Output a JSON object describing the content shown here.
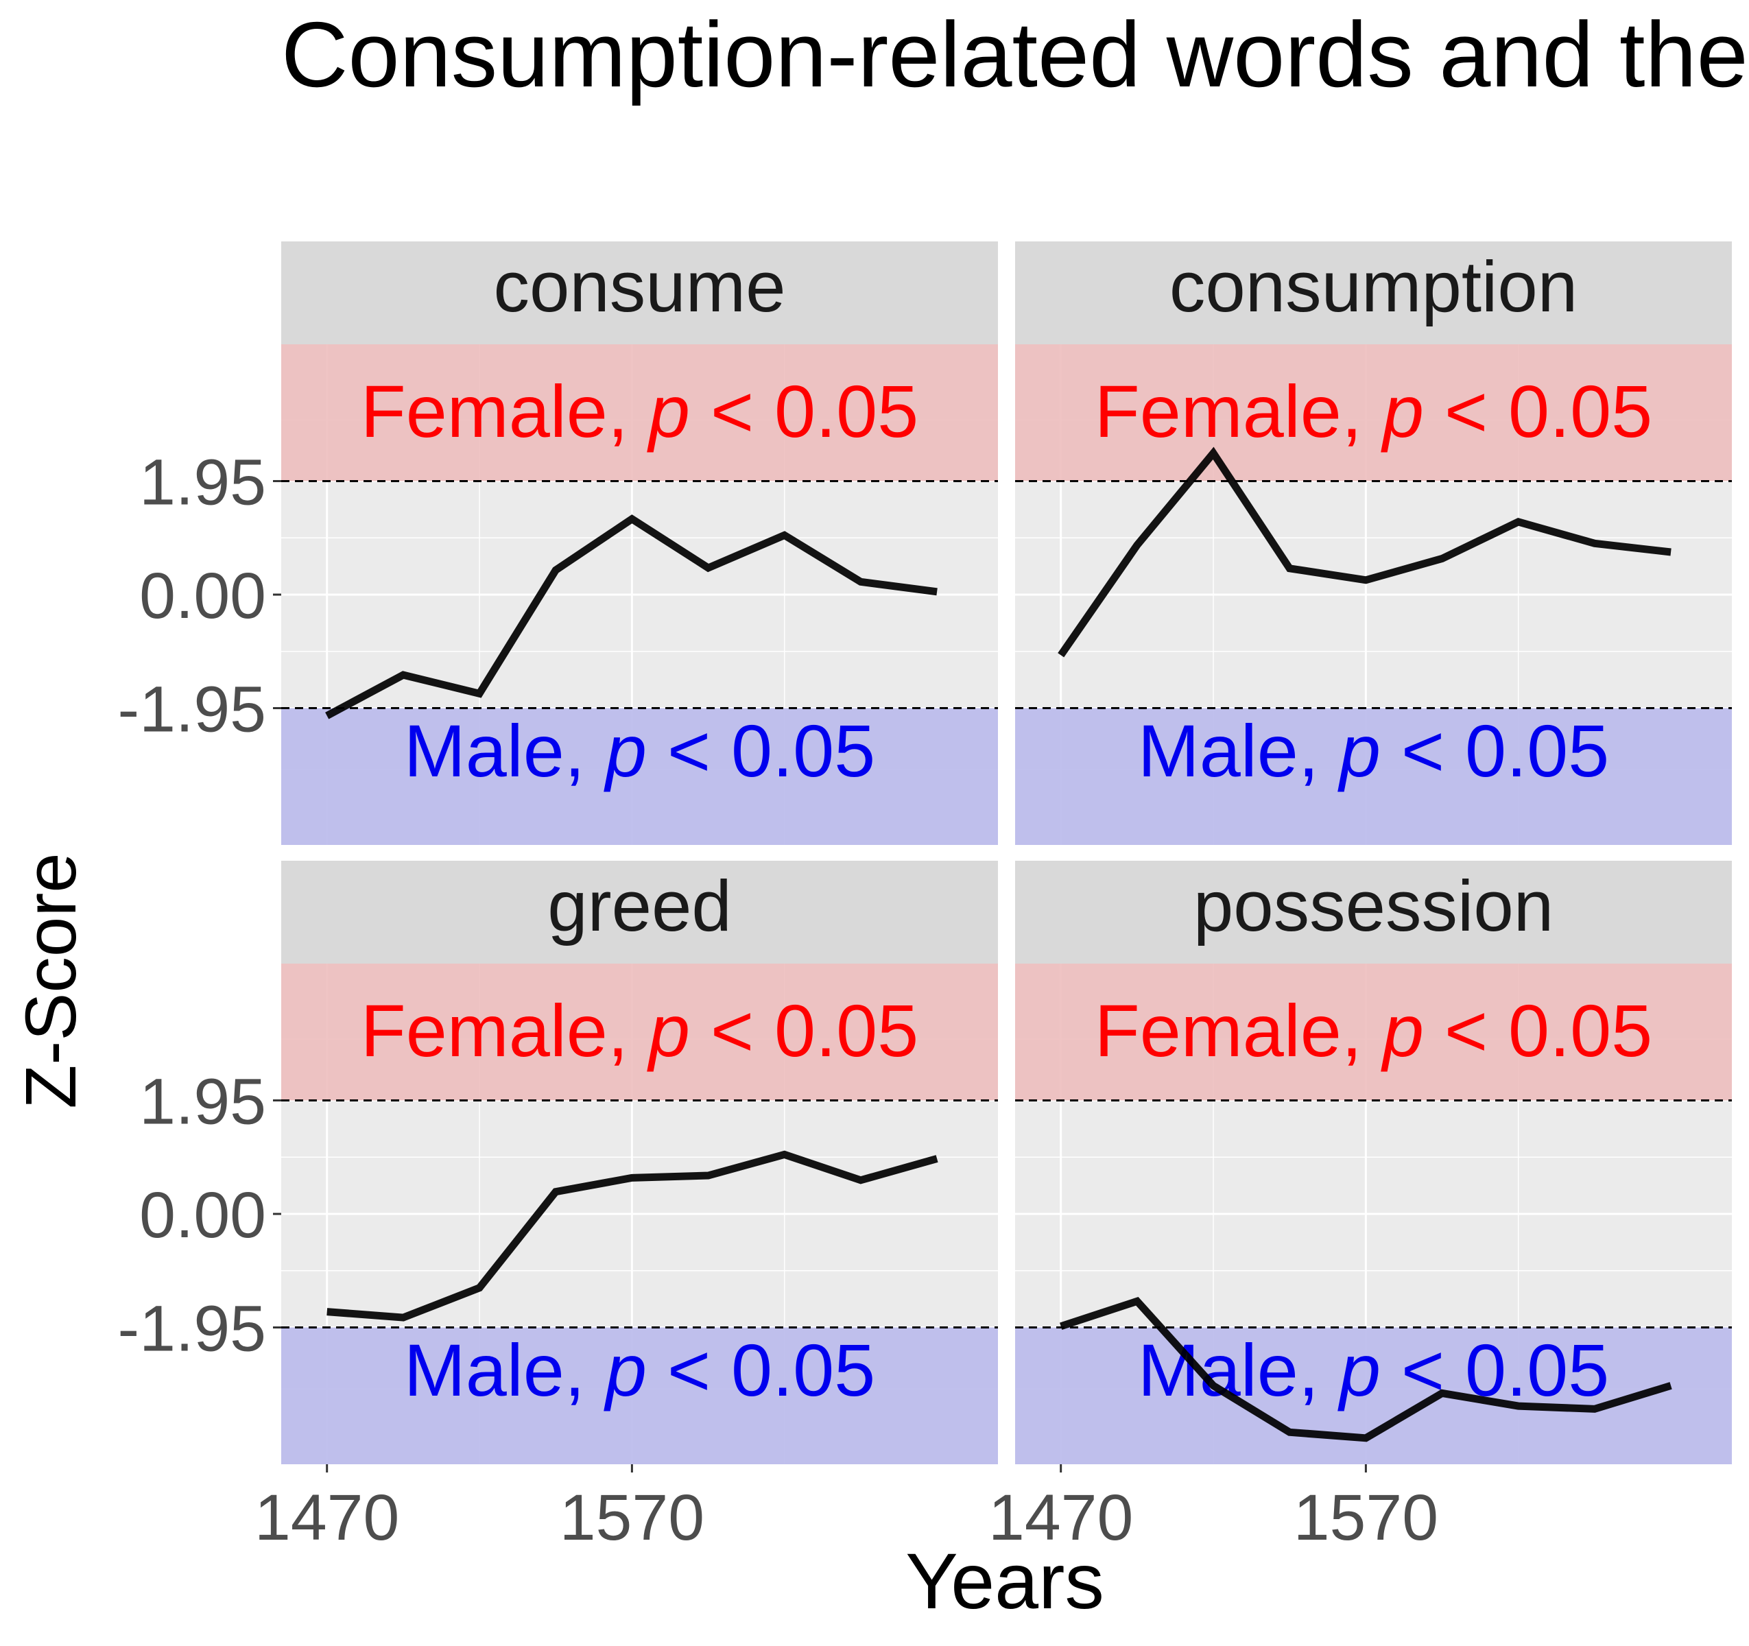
{
  "chart_data": {
    "type": "line",
    "title": "Consumption-related words and their gender contexts",
    "xlabel": "Years",
    "ylabel": "Z-Score",
    "x_ticks": [
      "1470",
      "1570"
    ],
    "y_ticks": [
      "-1.95",
      "0.00",
      "1.95"
    ],
    "xlim": [
      1455,
      1690
    ],
    "ylim": [
      -4.3,
      4.3
    ],
    "threshold": 1.95,
    "female_label": {
      "prefix": "Female, ",
      "p": "p",
      "suffix": " < 0.05"
    },
    "male_label": {
      "prefix": "Male, ",
      "p": "p",
      "suffix": " < 0.05"
    },
    "colors": {
      "female_band": "#EDBEBE",
      "male_band": "#BBBBEB",
      "panel_bg": "#EBEBEB",
      "strip_bg": "#D9D9D9",
      "female_text": "#FF0000",
      "male_text": "#0000EE",
      "line": "#000000"
    },
    "x": [
      1470,
      1495,
      1520,
      1545,
      1570,
      1595,
      1620,
      1645,
      1670
    ],
    "panels": [
      {
        "name": "consume",
        "values": [
          -2.08,
          -1.38,
          -1.7,
          0.42,
          1.3,
          0.46,
          1.02,
          0.22,
          0.05
        ]
      },
      {
        "name": "consumption",
        "values": [
          -1.04,
          0.85,
          2.43,
          0.45,
          0.25,
          0.62,
          1.25,
          0.88,
          0.73
        ]
      },
      {
        "name": "greed",
        "values": [
          -1.68,
          -1.78,
          -1.27,
          0.38,
          0.62,
          0.66,
          1.02,
          0.58,
          0.95
        ]
      },
      {
        "name": "possession",
        "values": [
          -1.93,
          -1.5,
          -2.95,
          -3.75,
          -3.85,
          -3.08,
          -3.3,
          -3.35,
          -2.95
        ]
      }
    ]
  }
}
